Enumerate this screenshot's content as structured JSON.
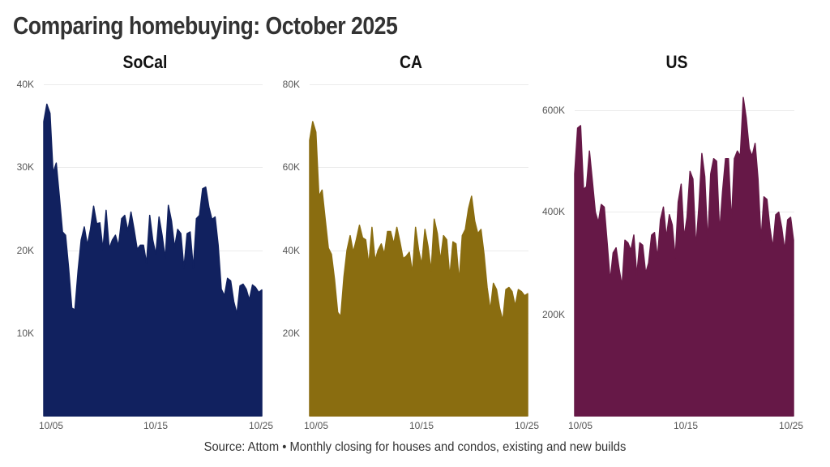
{
  "title": "Comparing homebuying: October 2025",
  "source": "Source: Attom • Monthly closing for houses and condos, existing and new builds",
  "colors": {
    "socal": "#11215f",
    "ca": "#8a6d10",
    "us": "#661847",
    "grid": "#ebebeb"
  },
  "chart_data": [
    {
      "type": "area",
      "title": "SoCal",
      "xlabel": "",
      "ylabel": "",
      "x_ticks": [
        "10/05",
        "10/15",
        "10/25"
      ],
      "y_ticks": [
        "10K",
        "20K",
        "30K",
        "40K"
      ],
      "ylim": [
        0,
        40000
      ],
      "grid": true,
      "color": "#11215f",
      "values_k": [
        35.5,
        37.6,
        36.5,
        29.3,
        30.5,
        26.5,
        22.2,
        21.8,
        17.8,
        13.0,
        12.8,
        17.5,
        21.2,
        22.8,
        20.6,
        22.5,
        25.3,
        23.2,
        23.3,
        20.1,
        24.8,
        20.2,
        21.2,
        21.8,
        20.5,
        23.8,
        24.2,
        22.3,
        24.6,
        22.5,
        20.1,
        20.6,
        20.6,
        18.4,
        24.2,
        21.2,
        19.5,
        24.0,
        21.8,
        19.0,
        25.4,
        23.5,
        20.3,
        22.5,
        22.0,
        17.8,
        22.0,
        22.2,
        17.8,
        23.8,
        24.2,
        27.4,
        27.6,
        25.2,
        23.7,
        24.0,
        20.6,
        15.3,
        14.5,
        16.6,
        16.3,
        13.8,
        12.3,
        15.7,
        15.9,
        15.3,
        14.0,
        15.8,
        15.5,
        14.9,
        15.2
      ]
    },
    {
      "type": "area",
      "title": "CA",
      "xlabel": "",
      "ylabel": "",
      "x_ticks": [
        "10/05",
        "10/15",
        "10/25"
      ],
      "y_ticks": [
        "20K",
        "40K",
        "60K",
        "80K"
      ],
      "ylim": [
        0,
        80000
      ],
      "grid": true,
      "color": "#8a6d10",
      "values_k": [
        66.5,
        71.0,
        68.5,
        53.0,
        54.5,
        47.5,
        40.5,
        39.0,
        33.0,
        25.0,
        24.0,
        33.5,
        40.0,
        43.5,
        39.5,
        42.5,
        46.0,
        43.0,
        42.5,
        36.5,
        45.5,
        37.5,
        40.0,
        41.5,
        39.0,
        44.5,
        44.5,
        41.5,
        45.5,
        42.0,
        38.0,
        38.5,
        39.5,
        34.5,
        45.5,
        40.0,
        36.5,
        45.0,
        41.0,
        35.0,
        47.5,
        44.0,
        37.5,
        43.5,
        42.5,
        33.5,
        42.0,
        41.5,
        32.5,
        43.5,
        45.0,
        50.0,
        53.0,
        47.0,
        44.0,
        45.0,
        39.0,
        31.0,
        25.5,
        32.0,
        30.5,
        26.0,
        23.0,
        30.5,
        31.0,
        30.0,
        26.5,
        30.5,
        30.0,
        29.0,
        29.5
      ]
    },
    {
      "type": "area",
      "title": "US",
      "xlabel": "",
      "ylabel": "",
      "x_ticks": [
        "10/05",
        "10/15",
        "10/25"
      ],
      "y_ticks": [
        "200K",
        "400K",
        "600K"
      ],
      "ylim": [
        0,
        650000
      ],
      "grid": true,
      "color": "#661847",
      "values_k": [
        475,
        565,
        570,
        445,
        450,
        520,
        460,
        400,
        380,
        415,
        410,
        340,
        265,
        320,
        330,
        290,
        255,
        345,
        340,
        325,
        355,
        275,
        340,
        335,
        280,
        300,
        355,
        360,
        310,
        385,
        410,
        350,
        395,
        375,
        310,
        420,
        455,
        350,
        390,
        480,
        465,
        330,
        410,
        515,
        470,
        340,
        475,
        505,
        500,
        360,
        440,
        505,
        505,
        380,
        505,
        520,
        510,
        625,
        585,
        525,
        510,
        535,
        465,
        345,
        430,
        425,
        370,
        330,
        395,
        400,
        370,
        325,
        385,
        390,
        345
      ]
    }
  ]
}
